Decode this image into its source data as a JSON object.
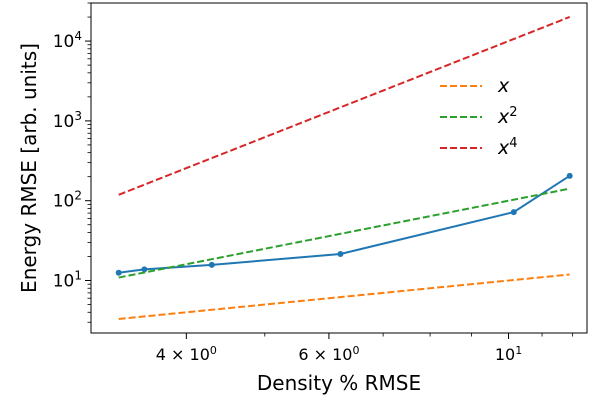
{
  "chart_data": {
    "type": "line",
    "xlabel": "Density % RMSE",
    "ylabel": "Energy RMSE [arb. units]",
    "xscale": "log",
    "yscale": "log",
    "xlim": [
      3.05,
      12.5
    ],
    "ylim": [
      2.2,
      30000
    ],
    "grid": false,
    "legend_position": "upper-right",
    "x_ticks": [
      {
        "value": 4,
        "base": "4 × 10",
        "exp": "0"
      },
      {
        "value": 6,
        "base": "6 × 10",
        "exp": "0"
      },
      {
        "value": 10,
        "base": "10",
        "exp": "1"
      }
    ],
    "y_ticks": [
      {
        "value": 10,
        "base": "10",
        "exp": "1"
      },
      {
        "value": 100,
        "base": "10",
        "exp": "2"
      },
      {
        "value": 1000,
        "base": "10",
        "exp": "3"
      },
      {
        "value": 10000,
        "base": "10",
        "exp": "4"
      }
    ],
    "series": [
      {
        "style": "solid-markers",
        "color": "#1f77b4",
        "x": [
          3.3,
          3.55,
          4.3,
          6.2,
          10.15,
          11.9
        ],
        "y": [
          12.5,
          13.8,
          15.7,
          21.5,
          72,
          205
        ]
      },
      {
        "name": "x",
        "label_base": "x",
        "label_exp": "",
        "style": "dashed",
        "color": "#ff7f0e",
        "x": [
          3.3,
          11.9
        ],
        "y": [
          3.3,
          11.9
        ]
      },
      {
        "name": "x^2",
        "label_base": "x",
        "label_exp": "2",
        "style": "dashed",
        "color": "#2ca02c",
        "x": [
          3.3,
          11.9
        ],
        "y": [
          10.89,
          141.6
        ]
      },
      {
        "name": "x^4",
        "label_base": "x",
        "label_exp": "4",
        "style": "dashed",
        "color": "#d62728",
        "x": [
          3.3,
          11.9
        ],
        "y": [
          118.6,
          20053
        ]
      }
    ]
  }
}
